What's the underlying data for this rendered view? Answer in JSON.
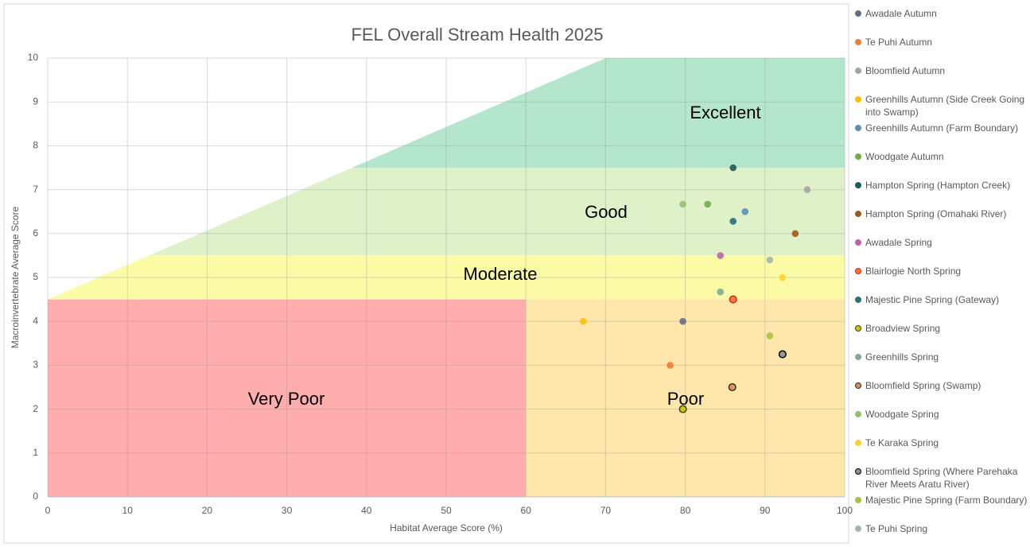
{
  "chart_data": {
    "type": "scatter",
    "title": "FEL Overall Stream Health 2025",
    "xlabel": "Habitat Average Score (%)",
    "ylabel": "Macroinvertebrate Average Score",
    "xlim": [
      0,
      100
    ],
    "ylim": [
      0,
      10
    ],
    "xticks": [
      0,
      10,
      20,
      30,
      40,
      50,
      60,
      70,
      80,
      90,
      100
    ],
    "yticks": [
      0,
      1,
      2,
      3,
      4,
      5,
      6,
      7,
      8,
      9,
      10
    ],
    "grid": true,
    "legend": "right",
    "zones": [
      {
        "name": "Excellent",
        "color": "#b3e6cc",
        "xmin": 0,
        "xmax": 100,
        "ymin": 7.5,
        "ymax": 10,
        "diagonal": true
      },
      {
        "name": "Good",
        "color": "#dff1c9",
        "xmin": 0,
        "xmax": 100,
        "ymin": 5.5,
        "ymax": 7.5,
        "diagonal": true
      },
      {
        "name": "Moderate",
        "color": "#fbfba6",
        "xmin": 0,
        "xmax": 100,
        "ymin": 4.5,
        "ymax": 5.5,
        "diagonal": true
      },
      {
        "name": "Very Poor",
        "color": "#ffadad",
        "xmin": 0,
        "xmax": 60,
        "ymin": 0,
        "ymax": 4.5,
        "diagonal": false
      },
      {
        "name": "Poor",
        "color": "#ffe6aa",
        "xmin": 60,
        "xmax": 100,
        "ymin": 0,
        "ymax": 4.5,
        "diagonal": false
      }
    ],
    "diagonal": {
      "x": [
        0,
        70
      ],
      "y": [
        4.5,
        10
      ]
    },
    "series": [
      {
        "name": "Awadale Autumn",
        "color": "#607080",
        "x": [
          79.7
        ],
        "values": [
          4.0
        ]
      },
      {
        "name": "Te Puhi Autumn",
        "color": "#ed7d31",
        "x": [
          78.1
        ],
        "values": [
          3.0
        ]
      },
      {
        "name": "Bloomfield Autumn",
        "color": "#a5a5a5",
        "x": [
          95.3
        ],
        "values": [
          7.0
        ]
      },
      {
        "name": "Greenhills Autumn (Side Creek Going into Swamp)",
        "color": "#ffc000",
        "x": [
          67.2
        ],
        "values": [
          4.0
        ]
      },
      {
        "name": "Greenhills Autumn (Farm Boundary)",
        "color": "#5b8fb8",
        "x": [
          87.5
        ],
        "values": [
          6.5
        ]
      },
      {
        "name": "Woodgate Autumn",
        "color": "#70ad47",
        "x": [
          82.8
        ],
        "values": [
          6.67
        ]
      },
      {
        "name": "Hampton Spring (Hampton Creek)",
        "color": "#1f5a5a",
        "x": [
          86.0
        ],
        "values": [
          7.5
        ]
      },
      {
        "name": "Hampton Spring (Omahaki River)",
        "color": "#9e5a1e",
        "x": [
          93.8
        ],
        "values": [
          6.0
        ]
      },
      {
        "name": "Awadale Spring",
        "color": "#c060a8",
        "x": [
          84.4
        ],
        "values": [
          5.5
        ]
      },
      {
        "name": "Blairlogie North Spring",
        "color": "#f07830",
        "edgecolor": "#e02020",
        "x": [
          86.0
        ],
        "values": [
          4.5
        ]
      },
      {
        "name": "Majestic Pine Spring (Gateway)",
        "color": "#2e6e78",
        "x": [
          86.0
        ],
        "values": [
          6.28
        ]
      },
      {
        "name": "Broadview Spring",
        "color": "#c8c800",
        "edgecolor": "#404000",
        "x": [
          79.7
        ],
        "values": [
          2.0
        ]
      },
      {
        "name": "Greenhills Spring",
        "color": "#80a8a0",
        "x": [
          84.4
        ],
        "values": [
          4.67
        ]
      },
      {
        "name": "Bloomfield Spring (Swamp)",
        "color": "#d89050",
        "edgecolor": "#303030",
        "x": [
          85.9
        ],
        "values": [
          2.5
        ]
      },
      {
        "name": "Woodgate Spring",
        "color": "#90c070",
        "x": [
          79.7
        ],
        "values": [
          6.67
        ]
      },
      {
        "name": "Te Karaka Spring",
        "color": "#ffd030",
        "x": [
          92.2
        ],
        "values": [
          5.0
        ]
      },
      {
        "name": "Bloomfield Spring (Where Parehaka River Meets Aratu River)",
        "color": "#909090",
        "edgecolor": "#000000",
        "x": [
          92.2
        ],
        "values": [
          3.25
        ]
      },
      {
        "name": "Majestic Pine Spring (Farm Boundary)",
        "color": "#a8c040",
        "x": [
          90.6
        ],
        "values": [
          3.67
        ]
      },
      {
        "name": "Te Puhi Spring",
        "color": "#a0b8a8",
        "x": [
          90.6
        ],
        "values": [
          5.4
        ]
      }
    ]
  }
}
